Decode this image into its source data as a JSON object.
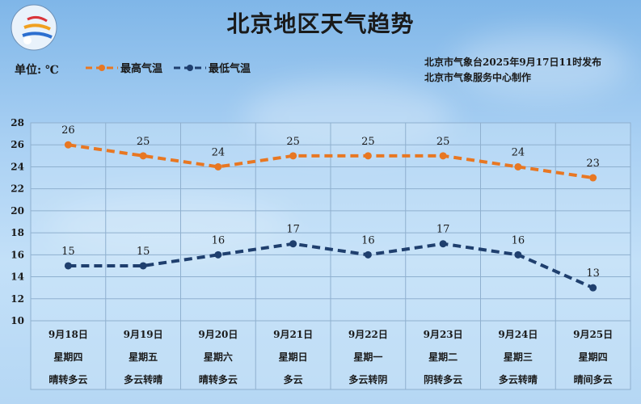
{
  "header": {
    "title": "北京地区天气趋势",
    "unit_label": "单位: ℃",
    "issuer_line1": "北京市气象台2025年9月17日11时发布",
    "issuer_line2": "北京市气象服务中心制作",
    "logo": "meteorological-service-logo-icon"
  },
  "legend": [
    {
      "label": "最高气温",
      "color": "#e87722"
    },
    {
      "label": "最低气温",
      "color": "#1f3f6e"
    }
  ],
  "chart_data": {
    "type": "line",
    "title": "北京地区天气趋势",
    "ylabel": "单位: ℃",
    "xlabel": "",
    "ylim": [
      10,
      28
    ],
    "yticks": [
      10,
      12,
      14,
      16,
      18,
      20,
      22,
      24,
      26,
      28
    ],
    "grid": true,
    "legend_position": "top-left",
    "categories": [
      "9月18日",
      "9月19日",
      "9月20日",
      "9月21日",
      "9月22日",
      "9月23日",
      "9月24日",
      "9月25日"
    ],
    "weekdays": [
      "星期四",
      "星期五",
      "星期六",
      "星期日",
      "星期一",
      "星期二",
      "星期三",
      "星期四"
    ],
    "weather": [
      "晴转多云",
      "多云转晴",
      "晴转多云",
      "多云",
      "多云转阴",
      "阴转多云",
      "多云转晴",
      "晴间多云"
    ],
    "series": [
      {
        "name": "最高气温",
        "color": "#e87722",
        "style": "dashed",
        "values": [
          26,
          25,
          24,
          25,
          25,
          25,
          24,
          23
        ]
      },
      {
        "name": "最低气温",
        "color": "#1f3f6e",
        "style": "dashed",
        "values": [
          15,
          15,
          16,
          17,
          16,
          17,
          16,
          13
        ]
      }
    ]
  },
  "days": [
    {
      "date": "9月18日",
      "weekday": "星期四",
      "weather": "晴转多云"
    },
    {
      "date": "9月19日",
      "weekday": "星期五",
      "weather": "多云转晴"
    },
    {
      "date": "9月20日",
      "weekday": "星期六",
      "weather": "晴转多云"
    },
    {
      "date": "9月21日",
      "weekday": "星期日",
      "weather": "多云"
    },
    {
      "date": "9月22日",
      "weekday": "星期一",
      "weather": "多云转阴"
    },
    {
      "date": "9月23日",
      "weekday": "星期二",
      "weather": "阴转多云"
    },
    {
      "date": "9月24日",
      "weekday": "星期三",
      "weather": "多云转晴"
    },
    {
      "date": "9月25日",
      "weekday": "星期四",
      "weather": "晴间多云"
    }
  ]
}
